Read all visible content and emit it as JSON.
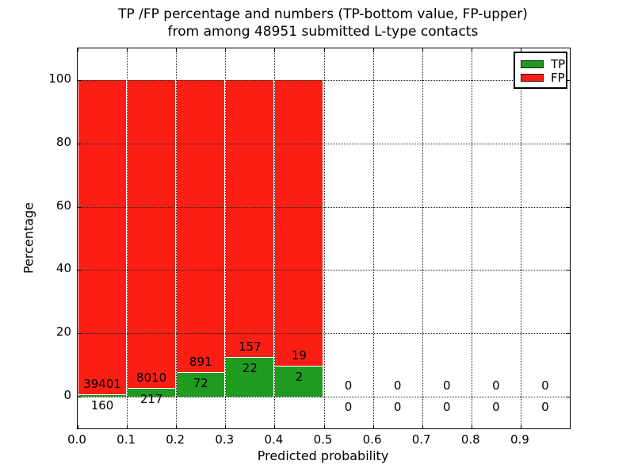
{
  "chart_data": {
    "type": "bar",
    "stacked": true,
    "title": "TP /FP percentage and numbers (TP-bottom value, FP-upper) from among 48951 submitted L-type contacts",
    "title_lines": [
      "TP /FP percentage and numbers (TP-bottom value, FP-upper)",
      "from among 48951 submitted L-type contacts"
    ],
    "xlabel": "Predicted probability",
    "ylabel": "Percentage",
    "xlim": [
      0.0,
      1.0
    ],
    "ylim": [
      -10,
      110
    ],
    "xticks": [
      0.0,
      0.1,
      0.2,
      0.3,
      0.4,
      0.5,
      0.6,
      0.7,
      0.8,
      0.9
    ],
    "yticks": [
      0,
      20,
      40,
      60,
      80,
      100
    ],
    "grid": true,
    "bin_width": 0.1,
    "total_contacts": 48951,
    "colors": {
      "tp": "#1f9b1f",
      "fp": "#fb1e15"
    },
    "legend": {
      "position": "upper right",
      "entries": [
        {
          "label": "TP",
          "color": "#1f9b1f"
        },
        {
          "label": "FP",
          "color": "#fb1e15"
        }
      ]
    },
    "bins": [
      {
        "start": 0.0,
        "tp": 160,
        "fp": 39401,
        "tp_pct": 0.4,
        "fp_pct": 99.6
      },
      {
        "start": 0.1,
        "tp": 217,
        "fp": 8010,
        "tp_pct": 2.64,
        "fp_pct": 97.36
      },
      {
        "start": 0.2,
        "tp": 72,
        "fp": 891,
        "tp_pct": 7.48,
        "fp_pct": 92.52
      },
      {
        "start": 0.3,
        "tp": 22,
        "fp": 157,
        "tp_pct": 12.29,
        "fp_pct": 87.71
      },
      {
        "start": 0.4,
        "tp": 2,
        "fp": 19,
        "tp_pct": 9.52,
        "fp_pct": 90.48
      },
      {
        "start": 0.5,
        "tp": 0,
        "fp": 0,
        "tp_pct": 0,
        "fp_pct": 0
      },
      {
        "start": 0.6,
        "tp": 0,
        "fp": 0,
        "tp_pct": 0,
        "fp_pct": 0
      },
      {
        "start": 0.7,
        "tp": 0,
        "fp": 0,
        "tp_pct": 0,
        "fp_pct": 0
      },
      {
        "start": 0.8,
        "tp": 0,
        "fp": 0,
        "tp_pct": 0,
        "fp_pct": 0
      },
      {
        "start": 0.9,
        "tp": 0,
        "fp": 0,
        "tp_pct": 0,
        "fp_pct": 0
      }
    ]
  }
}
